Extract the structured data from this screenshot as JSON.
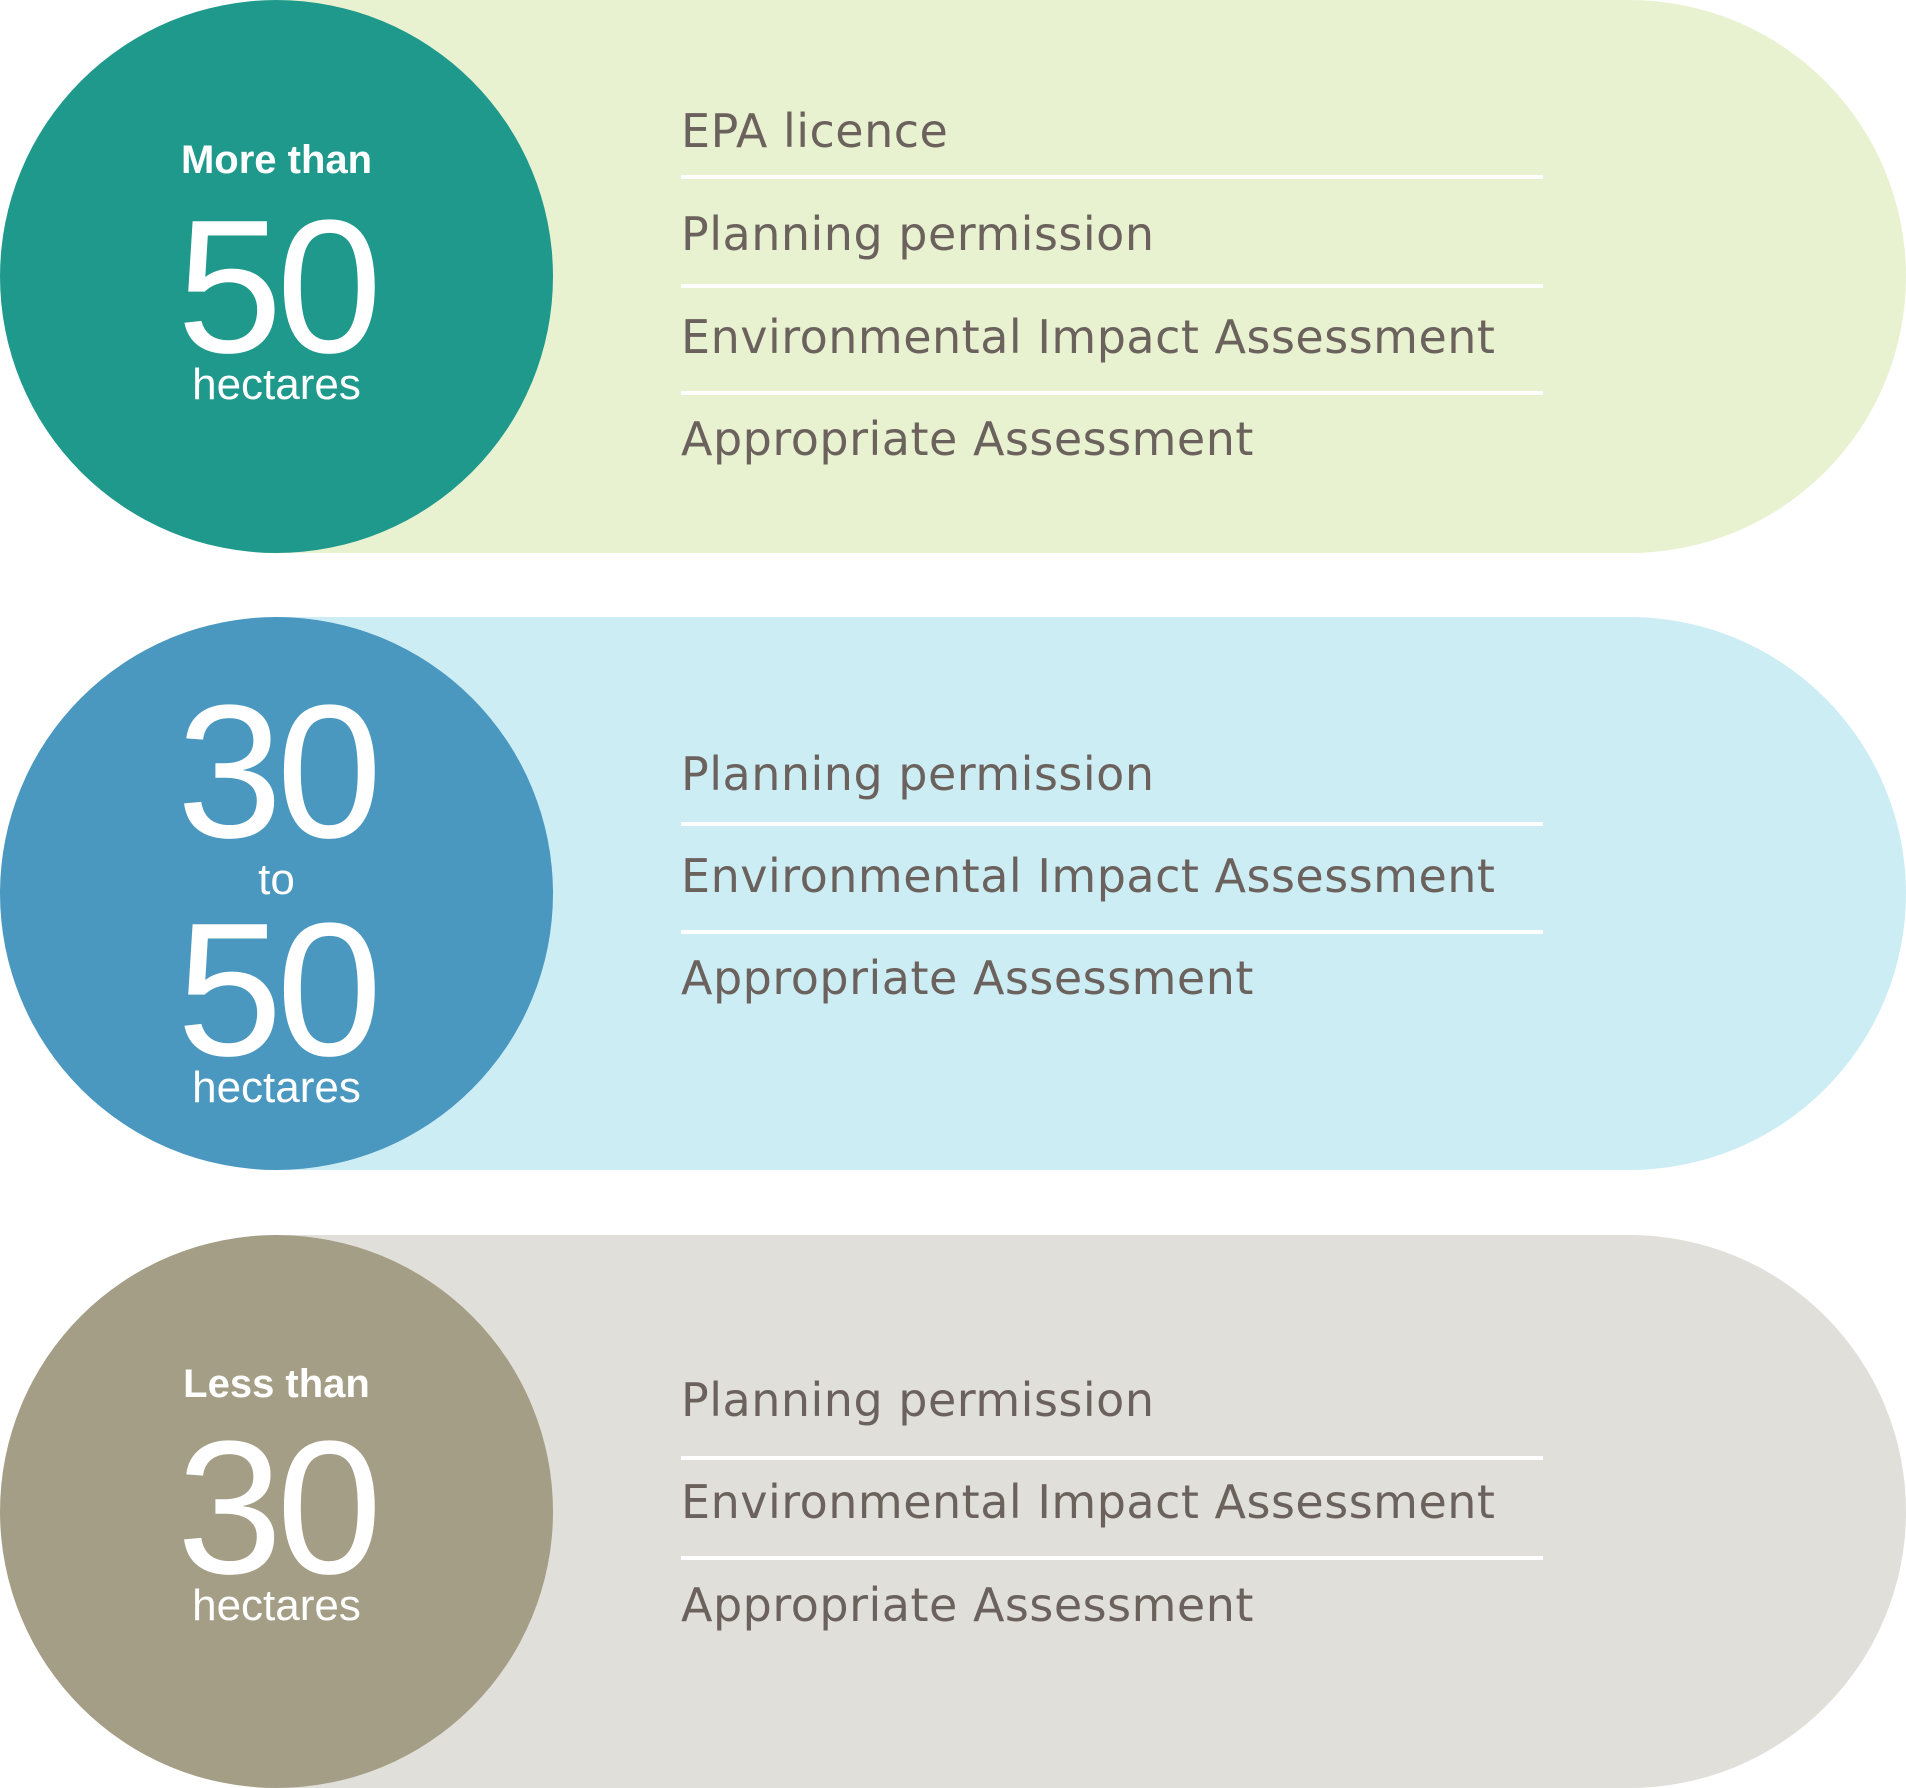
{
  "colors": {
    "band1_circle": "#1f998b",
    "band1_pill": "#e8f2d0",
    "band2_circle": "#4a98bf",
    "band2_pill": "#cdedf5",
    "band3_circle": "#a59e86",
    "band3_pill": "#e1dfd9",
    "item_text": "#6b625d"
  },
  "bands": [
    {
      "prefix": "More than",
      "number": "50",
      "unit": "hectares",
      "items": [
        "EPA licence",
        "Planning permission",
        "Environmental Impact Assessment",
        "Appropriate Assessment"
      ]
    },
    {
      "number_from": "30",
      "connector": "to",
      "number_to": "50",
      "unit": "hectares",
      "items": [
        "Planning permission",
        "Environmental Impact Assessment",
        "Appropriate Assessment"
      ]
    },
    {
      "prefix": "Less than",
      "number": "30",
      "unit": "hectares",
      "items": [
        "Planning permission",
        "Environmental Impact Assessment",
        "Appropriate Assessment"
      ]
    }
  ]
}
